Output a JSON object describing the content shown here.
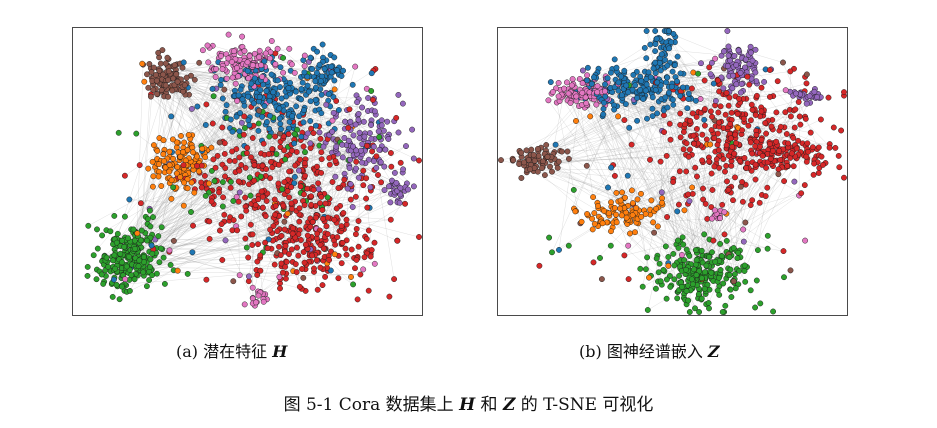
{
  "subfigures": [
    {
      "id": "a",
      "caption_prefix": "(a) 潜在特征 ",
      "caption_symbol": "H"
    },
    {
      "id": "b",
      "caption_prefix": "(b) 图神经谱嵌入 ",
      "caption_symbol": "Z"
    }
  ],
  "figure_caption": {
    "part1": "图 5-1 Cora 数据集上 ",
    "sym1": "H",
    "part2": " 和 ",
    "sym2": "Z",
    "part3": " 的 T-SNE 可视化"
  },
  "colors": {
    "blue": "#1f77b4",
    "orange": "#ff7f0e",
    "green": "#2ca02c",
    "red": "#d62728",
    "purple": "#9467bd",
    "brown": "#8c564b",
    "pink": "#e377c2",
    "edge": "#8c8c8c",
    "frame": "#4a4a4a"
  }
}
